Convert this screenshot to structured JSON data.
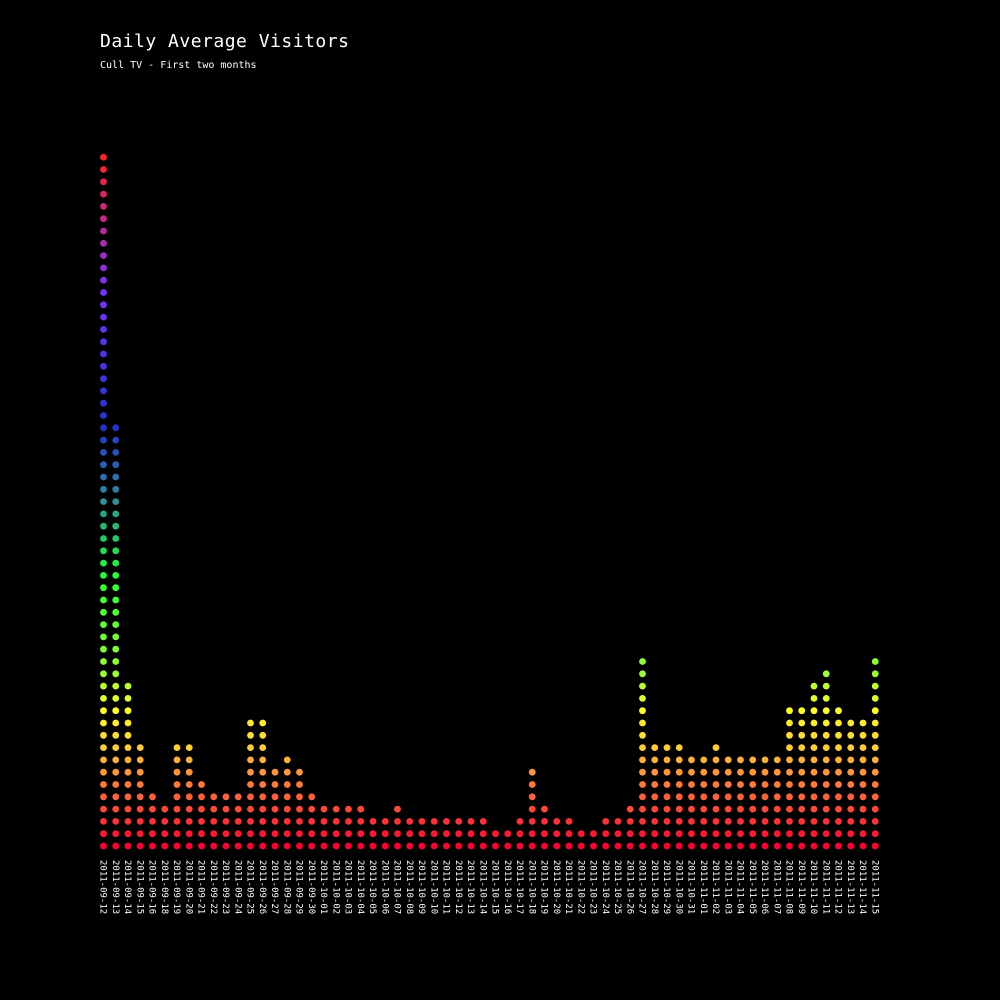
{
  "chart": {
    "title": "Daily Average Visitors",
    "subtitle": "Cull TV - First two months"
  },
  "chart_data": {
    "type": "bar",
    "style": "dot-stacked",
    "title": "Daily Average Visitors",
    "subtitle": "Cull TV - First two months",
    "background": "#000000",
    "grid": false,
    "categories": [
      "2011-09-12",
      "2011-09-13",
      "2011-09-14",
      "2011-09-15",
      "2011-09-16",
      "2011-09-18",
      "2011-09-19",
      "2011-09-20",
      "2011-09-21",
      "2011-09-22",
      "2011-09-23",
      "2011-09-24",
      "2011-09-25",
      "2011-09-26",
      "2011-09-27",
      "2011-09-28",
      "2011-09-29",
      "2011-09-30",
      "2011-10-01",
      "2011-10-02",
      "2011-10-03",
      "2011-10-04",
      "2011-10-05",
      "2011-10-06",
      "2011-10-07",
      "2011-10-08",
      "2011-10-09",
      "2011-10-10",
      "2011-10-11",
      "2011-10-12",
      "2011-10-13",
      "2011-10-14",
      "2011-10-15",
      "2011-10-16",
      "2011-10-17",
      "2011-10-18",
      "2011-10-19",
      "2011-10-20",
      "2011-10-21",
      "2011-10-22",
      "2011-10-23",
      "2011-10-24",
      "2011-10-25",
      "2011-10-26",
      "2011-10-27",
      "2011-10-28",
      "2011-10-29",
      "2011-10-30",
      "2011-10-31",
      "2011-11-01",
      "2011-11-02",
      "2011-11-03",
      "2011-11-04",
      "2011-11-05",
      "2011-11-06",
      "2011-11-07",
      "2011-11-08",
      "2011-11-09",
      "2011-11-10",
      "2011-11-11",
      "2011-11-12",
      "2011-11-13",
      "2011-11-14",
      "2011-11-15"
    ],
    "values": [
      57,
      35,
      14,
      9,
      5,
      4,
      9,
      9,
      6,
      5,
      5,
      5,
      11,
      11,
      7,
      8,
      7,
      5,
      4,
      4,
      4,
      4,
      3,
      3,
      4,
      3,
      3,
      3,
      3,
      3,
      3,
      3,
      2,
      2,
      3,
      7,
      4,
      3,
      3,
      2,
      2,
      3,
      3,
      4,
      16,
      9,
      9,
      9,
      8,
      8,
      9,
      8,
      8,
      8,
      8,
      8,
      12,
      12,
      14,
      15,
      12,
      11,
      11,
      16
    ],
    "color_scale": [
      "#ff0033",
      "#ff7a3a",
      "#ffcc33",
      "#ffff22",
      "#99ff33",
      "#22ff33",
      "#2a7fa8",
      "#2233cc",
      "#7733ff",
      "#ff2222"
    ]
  }
}
